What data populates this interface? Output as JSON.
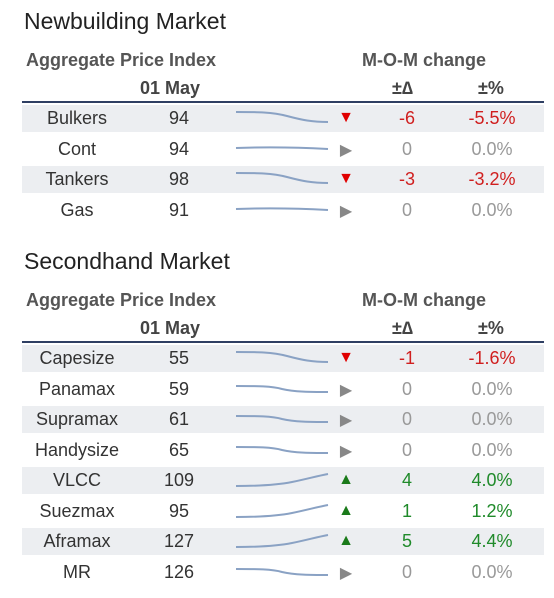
{
  "newbuilding": {
    "title": "Newbuilding Market",
    "index_label": "Aggregate Price Index",
    "date": "01 May",
    "change_label": "M-O-M change",
    "delta_label": "±∆",
    "pct_label": "±%",
    "rows": [
      {
        "name": "Bulkers",
        "value": "94",
        "trend": "down",
        "delta": "-6",
        "pct": "-5.5%",
        "shaded": true
      },
      {
        "name": "Cont",
        "value": "94",
        "trend": "flat",
        "delta": "0",
        "pct": "0.0%",
        "shaded": false
      },
      {
        "name": "Tankers",
        "value": "98",
        "trend": "down",
        "delta": "-3",
        "pct": "-3.2%",
        "shaded": true
      },
      {
        "name": "Gas",
        "value": "91",
        "trend": "flat",
        "delta": "0",
        "pct": "0.0%",
        "shaded": false
      }
    ]
  },
  "secondhand": {
    "title": "Secondhand Market",
    "index_label": "Aggregate Price Index",
    "date": "01 May",
    "change_label": "M-O-M change",
    "delta_label": "±∆",
    "pct_label": "±%",
    "rows": [
      {
        "name": "Capesize",
        "value": "55",
        "trend": "down",
        "delta": "-1",
        "pct": "-1.6%",
        "shaded": true
      },
      {
        "name": "Panamax",
        "value": "59",
        "trend": "flat",
        "delta": "0",
        "pct": "0.0%",
        "shaded": false
      },
      {
        "name": "Supramax",
        "value": "61",
        "trend": "flat",
        "delta": "0",
        "pct": "0.0%",
        "shaded": true
      },
      {
        "name": "Handysize",
        "value": "65",
        "trend": "flat",
        "delta": "0",
        "pct": "0.0%",
        "shaded": false
      },
      {
        "name": "VLCC",
        "value": "109",
        "trend": "up",
        "delta": "4",
        "pct": "4.0%",
        "shaded": true
      },
      {
        "name": "Suezmax",
        "value": "95",
        "trend": "up",
        "delta": "1",
        "pct": "1.2%",
        "shaded": false
      },
      {
        "name": "Aframax",
        "value": "127",
        "trend": "up",
        "delta": "5",
        "pct": "4.4%",
        "shaded": true
      },
      {
        "name": "MR",
        "value": "126",
        "trend": "flat",
        "delta": "0",
        "pct": "0.0%",
        "shaded": false
      }
    ]
  },
  "colors": {
    "negative": "#d01f1f",
    "positive": "#1f8a2a",
    "neutral": "#999999",
    "row_shade": "#eceef1",
    "rule": "#2f3f63",
    "sparkline": "#8aa2c4"
  },
  "icons": {
    "down": "down-triangle-icon",
    "up": "up-triangle-icon",
    "flat": "right-triangle-icon"
  }
}
